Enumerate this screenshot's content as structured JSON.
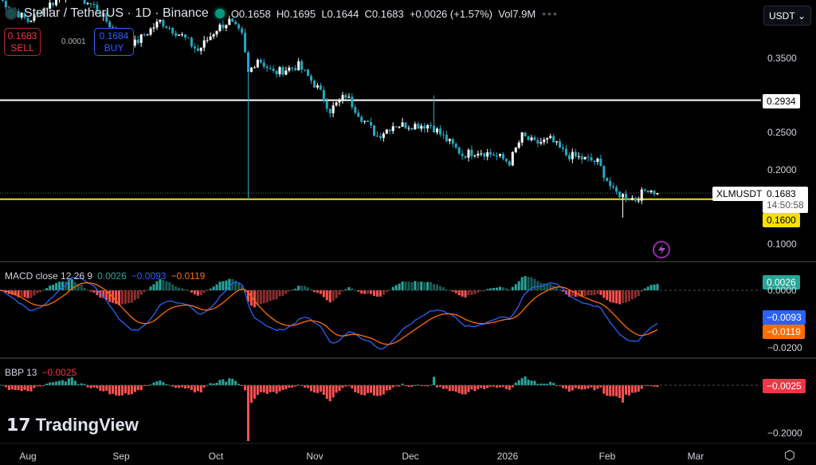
{
  "header": {
    "symbol": "Stellar / TetherUS · 1D · Binance",
    "open": "O0.1658",
    "high": "H0.1695",
    "low": "L0.1644",
    "close": "C0.1683",
    "change": "+0.0026 (+1.57%)",
    "volume": "Vol7.9M"
  },
  "trade": {
    "sell_price": "0.1683",
    "sell_label": "SELL",
    "spread": "0.0001",
    "buy_price": "0.1684",
    "buy_label": "BUY"
  },
  "currency": "USDT",
  "price_axis": {
    "ticks": [
      "0.3500",
      "0.2500",
      "0.2000",
      "0.1000"
    ],
    "hline_white": "0.2934",
    "hline_yellow": "0.1600",
    "last_price": "0.1683",
    "countdown": "14:50:58",
    "symbol_tag": "XLMUSDT"
  },
  "macd": {
    "label": "MACD close 12 26 9",
    "hist": "0.0026",
    "macd": "−0.0093",
    "signal": "−0.0119",
    "ticks": [
      "0.0000",
      "−0.0200"
    ]
  },
  "bbp": {
    "label": "BBP 13",
    "value": "−0.0025",
    "ticks": [
      "−0.2000"
    ]
  },
  "x_axis": [
    "Aug",
    "Sep",
    "Oct",
    "Nov",
    "Dec",
    "2026",
    "Feb",
    "Mar"
  ],
  "brand": "TradingView",
  "colors": {
    "up": "#ffffff",
    "down": "#22a9c0",
    "macd": "#2962ff",
    "signal": "#ff6d00",
    "hist_pos": "#26a69a",
    "hist_neg": "#ff5252",
    "yellow": "#f5e000"
  },
  "chart_data": {
    "type": "candlestick",
    "ylim": [
      0.09,
      0.43
    ],
    "closes": [
      [
        "2025-07-23",
        0.43
      ],
      [
        "2025-08-01",
        0.4
      ],
      [
        "2025-08-07",
        0.42
      ],
      [
        "2025-08-14",
        0.44
      ],
      [
        "2025-08-22",
        0.42
      ],
      [
        "2025-08-30",
        0.38
      ],
      [
        "2025-09-04",
        0.37
      ],
      [
        "2025-09-12",
        0.4
      ],
      [
        "2025-09-19",
        0.38
      ],
      [
        "2025-09-24",
        0.36
      ],
      [
        "2025-09-30",
        0.39
      ],
      [
        "2025-10-04",
        0.4
      ],
      [
        "2025-10-08",
        0.38
      ],
      [
        "2025-10-10",
        0.33
      ],
      [
        "2025-10-13",
        0.35
      ],
      [
        "2025-10-18",
        0.33
      ],
      [
        "2025-10-26",
        0.34
      ],
      [
        "2025-11-01",
        0.31
      ],
      [
        "2025-11-05",
        0.28
      ],
      [
        "2025-11-10",
        0.3
      ],
      [
        "2025-11-15",
        0.27
      ],
      [
        "2025-11-20",
        0.245
      ],
      [
        "2025-11-25",
        0.26
      ],
      [
        "2025-12-02",
        0.26
      ],
      [
        "2025-12-07",
        0.26
      ],
      [
        "2025-12-12",
        0.24
      ],
      [
        "2025-12-17",
        0.22
      ],
      [
        "2025-12-22",
        0.225
      ],
      [
        "2025-12-27",
        0.22
      ],
      [
        "2026-01-01",
        0.21
      ],
      [
        "2026-01-05",
        0.245
      ],
      [
        "2026-01-09",
        0.235
      ],
      [
        "2026-01-14",
        0.24
      ],
      [
        "2026-01-19",
        0.22
      ],
      [
        "2026-01-24",
        0.215
      ],
      [
        "2026-01-29",
        0.21
      ],
      [
        "2026-02-03",
        0.17
      ],
      [
        "2026-02-06",
        0.165
      ],
      [
        "2026-02-10",
        0.16
      ],
      [
        "2026-02-14",
        0.175
      ],
      [
        "2026-02-17",
        0.1683
      ]
    ],
    "notable_wicks": [
      [
        "2025-10-10",
        0.16
      ],
      [
        "2025-12-08",
        0.3
      ],
      [
        "2026-02-06",
        0.135
      ]
    ]
  }
}
